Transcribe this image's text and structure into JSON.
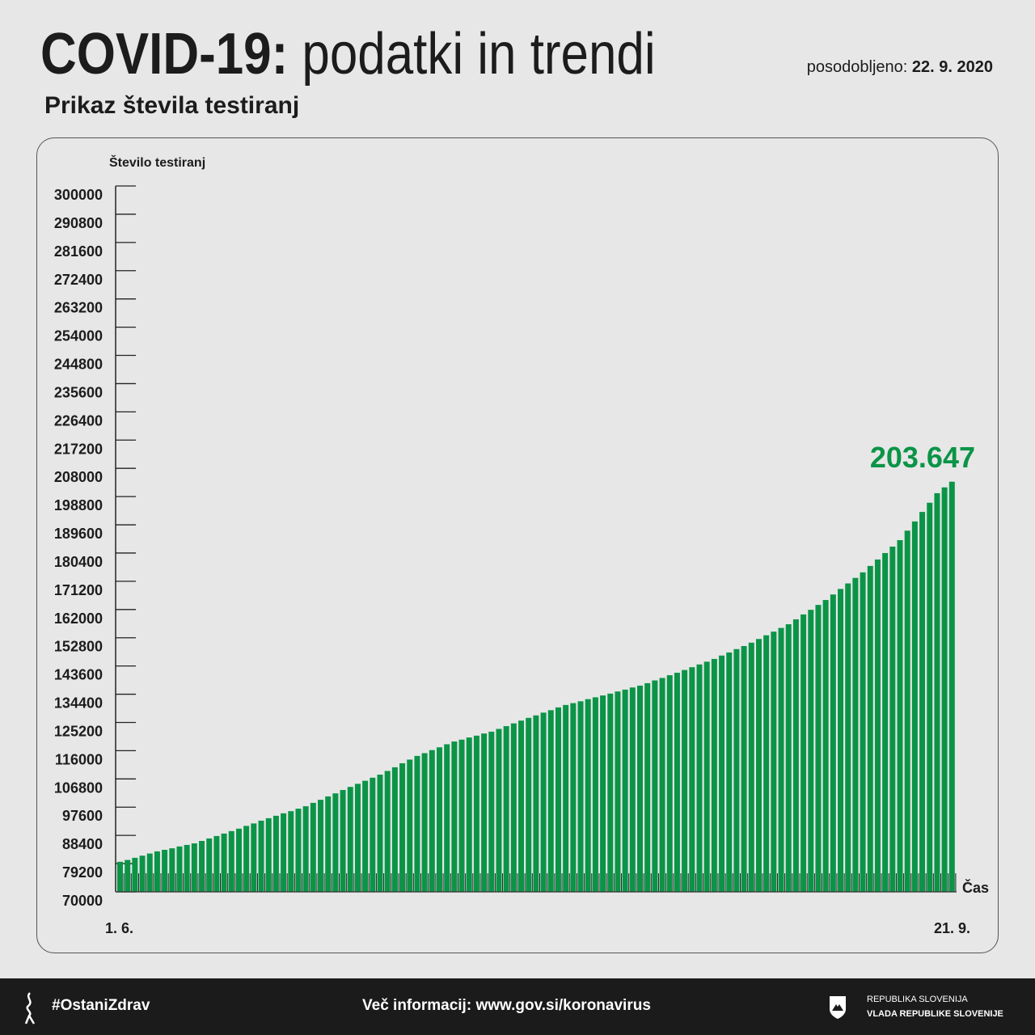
{
  "header": {
    "title_bold": "COVID-19:",
    "title_light": "podatki in trendi",
    "updated_label": "posodobljeno:",
    "updated_date": "22. 9. 2020",
    "subtitle": "Prikaz števila testiranj"
  },
  "chart_data": {
    "type": "bar",
    "ylabel": "Število testiranj",
    "xlabel": "Čas",
    "ylim": [
      70000,
      300000
    ],
    "yticks": [
      "300000",
      "290800",
      "281600",
      "272400",
      "263200",
      "254000",
      "244800",
      "235600",
      "226400",
      "217200",
      "208000",
      "198800",
      "189600",
      "180400",
      "171200",
      "162000",
      "152800",
      "143600",
      "134400",
      "125200",
      "116000",
      "106800",
      "97600",
      "88400",
      "79200",
      "70000"
    ],
    "x_start_label": "1. 6.",
    "x_end_label": "21. 9.",
    "annotation": "203.647",
    "bar_color": "#0b9447",
    "annotation_color": "#0b9447",
    "values": [
      79800,
      80400,
      81100,
      81800,
      82500,
      83200,
      83700,
      84200,
      84800,
      85300,
      85800,
      86600,
      87400,
      88200,
      89000,
      89800,
      90600,
      91500,
      92300,
      93200,
      94000,
      94800,
      95600,
      96300,
      97100,
      97900,
      99000,
      100000,
      101100,
      102100,
      103200,
      104200,
      105200,
      106200,
      107200,
      108200,
      109400,
      110600,
      111900,
      113100,
      114300,
      115200,
      116200,
      117100,
      118100,
      119000,
      119600,
      120300,
      120900,
      121600,
      122200,
      123100,
      124000,
      124900,
      125800,
      126700,
      127500,
      128400,
      129200,
      130100,
      130900,
      131500,
      132100,
      132800,
      133400,
      134000,
      134600,
      135300,
      135900,
      136600,
      137200,
      138000,
      138900,
      139700,
      140600,
      141400,
      142300,
      143200,
      144100,
      145000,
      145900,
      147000,
      148000,
      149100,
      150100,
      151200,
      152400,
      153600,
      154800,
      156000,
      157200,
      158800,
      160400,
      161900,
      163500,
      165100,
      166900,
      168700,
      170500,
      172300,
      174100,
      176200,
      178300,
      180400,
      182500,
      184600,
      187700,
      190700,
      193800,
      196800,
      199900,
      201800,
      203647
    ]
  },
  "footer": {
    "hashtag": "#OstaniZdrav",
    "info": "Več informacij: www.gov.si/koronavirus",
    "gov_line1": "REPUBLIKA SLOVENIJA",
    "gov_line2": "VLADA REPUBLIKE SLOVENIJE"
  }
}
